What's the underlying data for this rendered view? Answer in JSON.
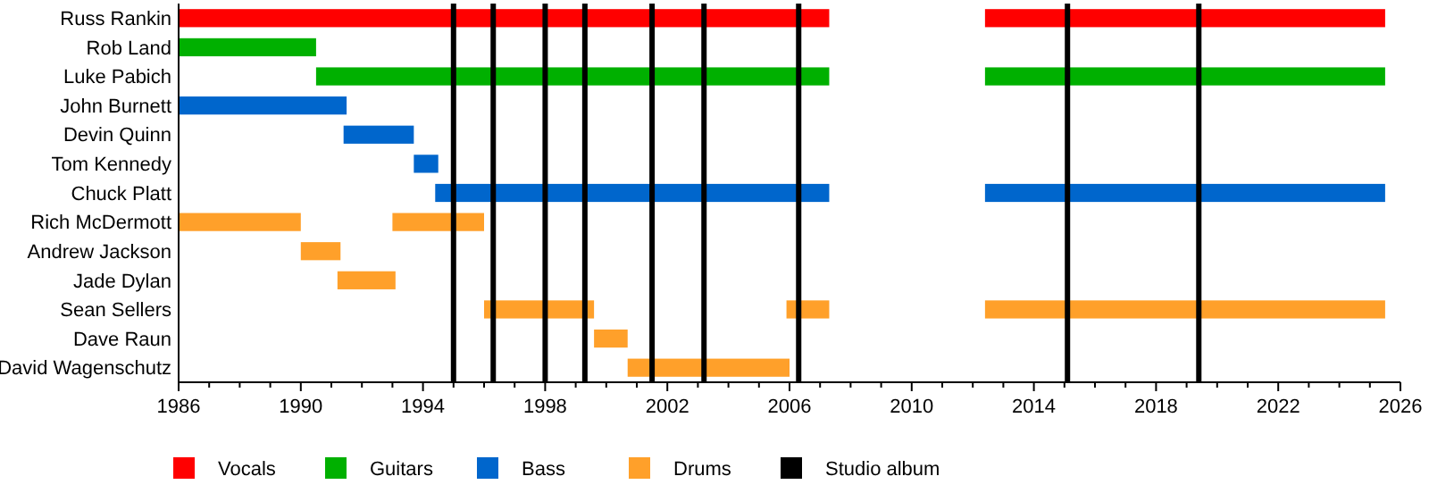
{
  "chart_data": {
    "type": "bar",
    "orientation": "horizontal",
    "categories": [
      "Russ Rankin",
      "Rob Land",
      "Luke Pabich",
      "John Burnett",
      "Devin Quinn",
      "Tom Kennedy",
      "Chuck Platt",
      "Rich McDermott",
      "Andrew Jackson",
      "Jade Dylan",
      "Sean Sellers",
      "Dave Raun",
      "David Wagenschutz"
    ],
    "series": [
      {
        "name": "Vocals",
        "color": "#ff0000",
        "base": [
          1986,
          null,
          null,
          null,
          null,
          null,
          null,
          null,
          null,
          null,
          null,
          null,
          null
        ],
        "values": [
          21.3,
          null,
          null,
          null,
          null,
          null,
          null,
          null,
          null,
          null,
          null,
          null,
          null
        ]
      },
      {
        "color": "#ff0000",
        "base": [
          2012.4,
          null,
          null,
          null,
          null,
          null,
          null,
          null,
          null,
          null,
          null,
          null,
          null
        ],
        "values": [
          13.1,
          null,
          null,
          null,
          null,
          null,
          null,
          null,
          null,
          null,
          null,
          null,
          null
        ]
      },
      {
        "name": "Guitars",
        "color": "#00b000",
        "base": [
          null,
          1986,
          1990.5,
          null,
          null,
          null,
          null,
          null,
          null,
          null,
          null,
          null,
          null
        ],
        "values": [
          null,
          4.5,
          16.8,
          null,
          null,
          null,
          null,
          null,
          null,
          null,
          null,
          null,
          null
        ]
      },
      {
        "color": "#00b000",
        "base": [
          null,
          null,
          2012.4,
          null,
          null,
          null,
          null,
          null,
          null,
          null,
          null,
          null,
          null
        ],
        "values": [
          null,
          null,
          13.1,
          null,
          null,
          null,
          null,
          null,
          null,
          null,
          null,
          null,
          null
        ]
      },
      {
        "name": "Bass",
        "color": "#0066cc",
        "base": [
          null,
          null,
          null,
          1986,
          1991.4,
          1993.7,
          1994.4,
          null,
          null,
          null,
          null,
          null,
          null
        ],
        "values": [
          null,
          null,
          null,
          5.5,
          2.3,
          0.8,
          12.9,
          null,
          null,
          null,
          null,
          null,
          null
        ]
      },
      {
        "color": "#0066cc",
        "base": [
          null,
          null,
          null,
          null,
          null,
          null,
          2012.4,
          null,
          null,
          null,
          null,
          null,
          null
        ],
        "values": [
          null,
          null,
          null,
          null,
          null,
          null,
          13.1,
          null,
          null,
          null,
          null,
          null,
          null
        ]
      },
      {
        "name": "Drums",
        "color": "#ffa02a",
        "base": [
          null,
          null,
          null,
          null,
          null,
          null,
          null,
          1986,
          1990,
          1991.2,
          1996,
          1999.6,
          2000.7
        ],
        "values": [
          null,
          null,
          null,
          null,
          null,
          null,
          null,
          4,
          1.3,
          1.9,
          3.6,
          1.1,
          5.3
        ]
      },
      {
        "color": "#ffa02a",
        "base": [
          null,
          null,
          null,
          null,
          null,
          null,
          null,
          1993,
          null,
          null,
          2005.9,
          null,
          null
        ],
        "values": [
          null,
          null,
          null,
          null,
          null,
          null,
          null,
          3,
          null,
          null,
          1.4,
          null,
          null
        ]
      },
      {
        "color": "#ffa02a",
        "base": [
          null,
          null,
          null,
          null,
          null,
          null,
          null,
          null,
          null,
          null,
          2012.4,
          null,
          null
        ],
        "values": [
          null,
          null,
          null,
          null,
          null,
          null,
          null,
          null,
          null,
          null,
          13.1,
          null,
          null
        ]
      }
    ],
    "ref_lines": [
      {
        "axis": "x",
        "value": 1995.0,
        "label": "Studio album",
        "color": "#000000"
      },
      {
        "axis": "x",
        "value": 1996.3,
        "color": "#000000"
      },
      {
        "axis": "x",
        "value": 1998.0,
        "color": "#000000"
      },
      {
        "axis": "x",
        "value": 1999.3,
        "color": "#000000"
      },
      {
        "axis": "x",
        "value": 2001.5,
        "color": "#000000"
      },
      {
        "axis": "x",
        "value": 2003.2,
        "color": "#000000"
      },
      {
        "axis": "x",
        "value": 2006.3,
        "color": "#000000"
      },
      {
        "axis": "x",
        "value": 2015.1,
        "color": "#000000"
      },
      {
        "axis": "x",
        "value": 2019.4,
        "color": "#000000"
      }
    ],
    "xlim": [
      1986,
      2026
    ],
    "xticks": [
      1986,
      {
        "value": 1987,
        "label": null
      },
      {
        "value": 1988,
        "label": null
      },
      {
        "value": 1989,
        "label": null
      },
      1990,
      {
        "value": 1991,
        "label": null
      },
      {
        "value": 1992,
        "label": null
      },
      {
        "value": 1993,
        "label": null
      },
      1994,
      {
        "value": 1995,
        "label": null
      },
      {
        "value": 1996,
        "label": null
      },
      {
        "value": 1997,
        "label": null
      },
      1998,
      {
        "value": 1999,
        "label": null
      },
      {
        "value": 2000,
        "label": null
      },
      {
        "value": 2001,
        "label": null
      },
      2002,
      {
        "value": 2003,
        "label": null
      },
      {
        "value": 2004,
        "label": null
      },
      {
        "value": 2005,
        "label": null
      },
      2006,
      {
        "value": 2007,
        "label": null
      },
      {
        "value": 2008,
        "label": null
      },
      {
        "value": 2009,
        "label": null
      },
      2010,
      {
        "value": 2011,
        "label": null
      },
      {
        "value": 2012,
        "label": null
      },
      {
        "value": 2013,
        "label": null
      },
      2014,
      {
        "value": 2015,
        "label": null
      },
      {
        "value": 2016,
        "label": null
      },
      {
        "value": 2017,
        "label": null
      },
      2018,
      {
        "value": 2019,
        "label": null
      },
      {
        "value": 2020,
        "label": null
      },
      {
        "value": 2021,
        "label": null
      },
      2022,
      {
        "value": 2023,
        "label": null
      },
      {
        "value": 2024,
        "label": null
      },
      {
        "value": 2025,
        "label": null
      },
      2026
    ],
    "legend": "bottom left",
    "grid": false
  }
}
